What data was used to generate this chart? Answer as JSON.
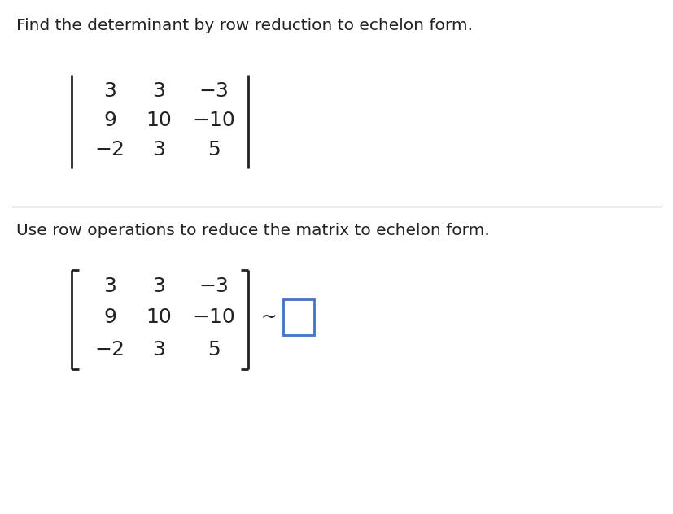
{
  "title_top": "Find the determinant by row reduction to echelon form.",
  "title_bottom": "Use row operations to reduce the matrix to echelon form.",
  "matrix_rows": [
    [
      "3",
      "3",
      "−3"
    ],
    [
      "9",
      "10",
      "−10"
    ],
    [
      "−2",
      "3",
      "5"
    ]
  ],
  "bg_color": "#ffffff",
  "text_color": "#222222",
  "divider_color": "#aaaaaa",
  "box_color": "#4472c4",
  "font_size_title": 14.5,
  "font_size_matrix": 18
}
